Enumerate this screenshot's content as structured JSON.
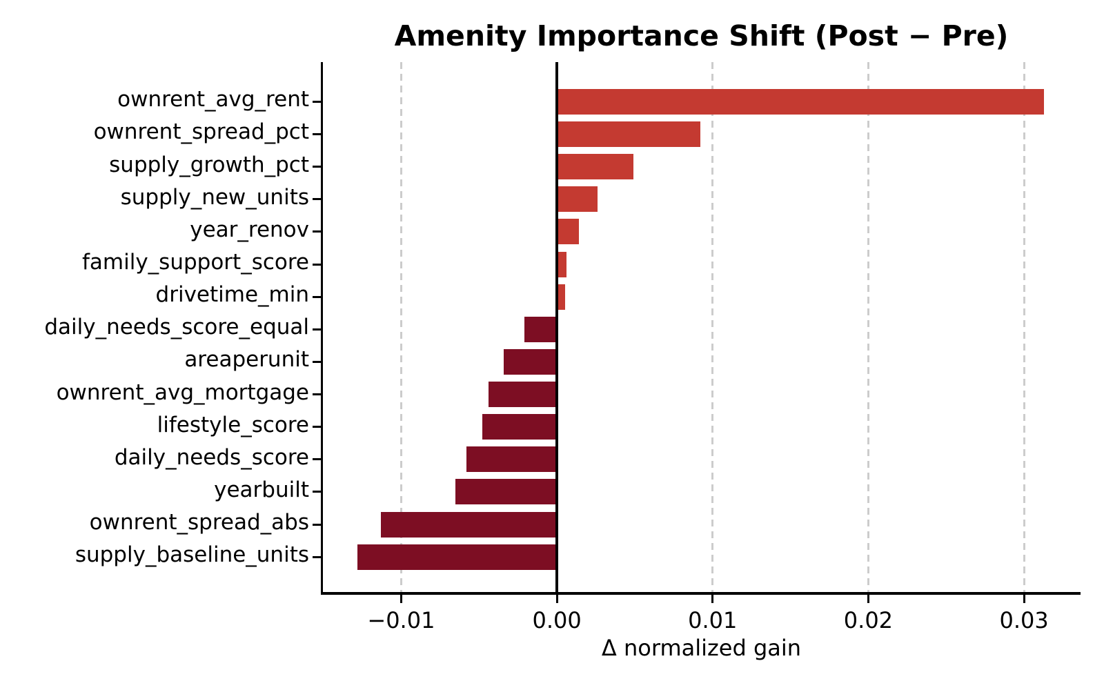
{
  "chart_data": {
    "type": "bar",
    "orientation": "horizontal",
    "title": "Amenity Importance Shift (Post − Pre)",
    "xlabel": "Δ normalized gain",
    "ylabel": "",
    "categories": [
      "ownrent_avg_rent",
      "ownrent_spread_pct",
      "supply_growth_pct",
      "supply_new_units",
      "year_renov",
      "family_support_score",
      "drivetime_min",
      "daily_needs_score_equal",
      "areaperunit",
      "ownrent_avg_mortgage",
      "lifestyle_score",
      "daily_needs_score",
      "yearbuilt",
      "ownrent_spread_abs",
      "supply_baseline_units"
    ],
    "values": [
      0.0313,
      0.0092,
      0.0049,
      0.0026,
      0.0014,
      0.0006,
      0.00055,
      -0.0021,
      -0.0034,
      -0.0044,
      -0.0048,
      -0.0058,
      -0.0065,
      -0.0113,
      -0.0128
    ],
    "x_ticks": [
      -0.01,
      0.0,
      0.01,
      0.02,
      0.03
    ],
    "x_tick_labels": [
      "−0.01",
      "0.00",
      "0.01",
      "0.02",
      "0.03"
    ],
    "xlim": [
      -0.01507,
      0.03363
    ],
    "grid": "vertical dashed gridlines at x ticks, solid black line at zero",
    "legend": "none",
    "colors": {
      "positive_bar": "#c43a31",
      "negative_bar": "#7d0e23",
      "gridline": "#cccccc",
      "axis": "#000000",
      "background": "#ffffff"
    }
  }
}
